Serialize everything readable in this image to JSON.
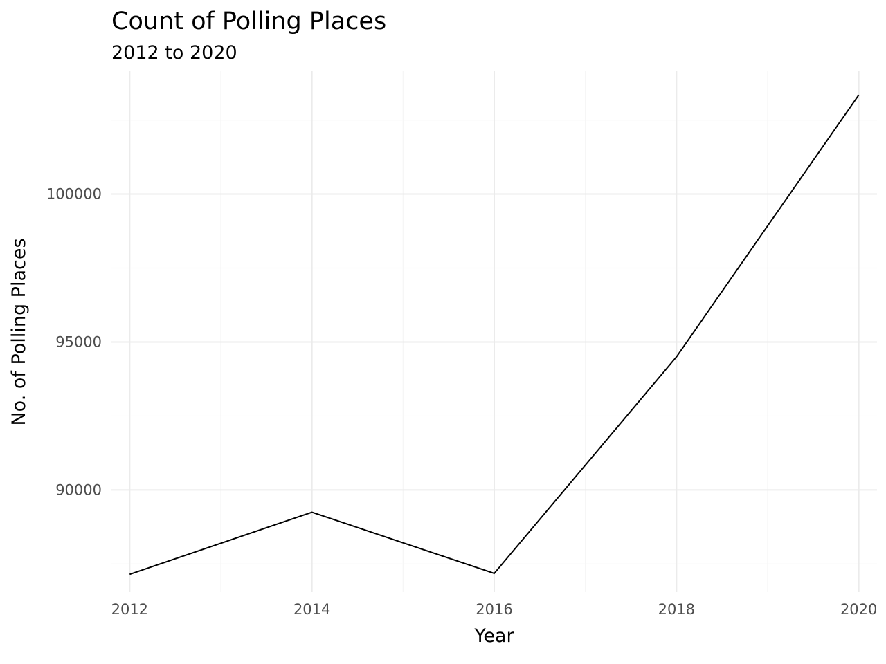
{
  "chart_data": {
    "type": "line",
    "title": "Count of Polling Places",
    "subtitle": "2012 to 2020",
    "xlabel": "Year",
    "ylabel": "No. of Polling Places",
    "x": [
      2012,
      2014,
      2016,
      2018,
      2020
    ],
    "series": [
      {
        "values": [
          87150,
          89250,
          87180,
          94500,
          103350
        ]
      }
    ],
    "xlim": [
      2011.8,
      2020.2
    ],
    "ylim": [
      86550,
      104150
    ],
    "x_ticks": [
      2012,
      2014,
      2016,
      2018,
      2020
    ],
    "x_tick_labels": [
      "2012",
      "2014",
      "2016",
      "2018",
      "2020"
    ],
    "y_ticks": [
      90000,
      95000,
      100000
    ],
    "y_tick_labels": [
      "90000",
      "95000",
      "100000"
    ],
    "x_minor_ticks": [
      2013,
      2015,
      2017,
      2019
    ],
    "y_minor_ticks": [
      87500,
      92500,
      97500,
      102500
    ],
    "grid": true,
    "legend": "none",
    "line_color": "#000000"
  }
}
